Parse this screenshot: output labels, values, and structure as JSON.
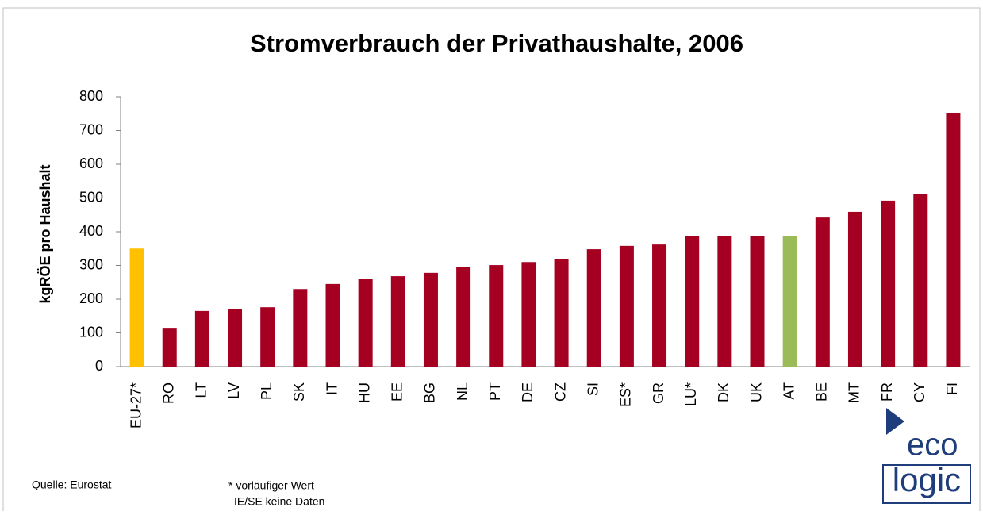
{
  "chart_data": {
    "type": "bar",
    "title": "Stromverbrauch der Privathaushalte, 2006",
    "y_label": "kgRÖE pro Haushalt",
    "categories": [
      "EU-27*",
      "RO",
      "LT",
      "LV",
      "PL",
      "SK",
      "IT",
      "HU",
      "EE",
      "BG",
      "NL",
      "PT",
      "DE",
      "CZ",
      "SI",
      "ES*",
      "GR",
      "LU*",
      "DK",
      "UK",
      "AT",
      "BE",
      "MT",
      "FR",
      "CY",
      "FI"
    ],
    "values": [
      350,
      115,
      165,
      170,
      176,
      230,
      245,
      259,
      268,
      278,
      296,
      301,
      310,
      318,
      348,
      358,
      362,
      386,
      386,
      386,
      386,
      442,
      459,
      492,
      511,
      753
    ],
    "colors": [
      "#ffc000",
      "#a50021",
      "#a50021",
      "#a50021",
      "#a50021",
      "#a50021",
      "#a50021",
      "#a50021",
      "#a50021",
      "#a50021",
      "#a50021",
      "#a50021",
      "#a50021",
      "#a50021",
      "#a50021",
      "#a50021",
      "#a50021",
      "#a50021",
      "#a50021",
      "#a50021",
      "#9bbb59",
      "#a50021",
      "#a50021",
      "#a50021",
      "#a50021",
      "#a50021"
    ],
    "ylim": [
      0,
      800
    ],
    "yticks": [
      0,
      100,
      200,
      300,
      400,
      500,
      600,
      700,
      800
    ],
    "grid": false
  },
  "footer": {
    "source": "Quelle: Eurostat",
    "note": "* vorläufiger Wert",
    "note2": "IE/SE keine Daten"
  },
  "logo": {
    "top": "eco",
    "bottom": "logic"
  }
}
